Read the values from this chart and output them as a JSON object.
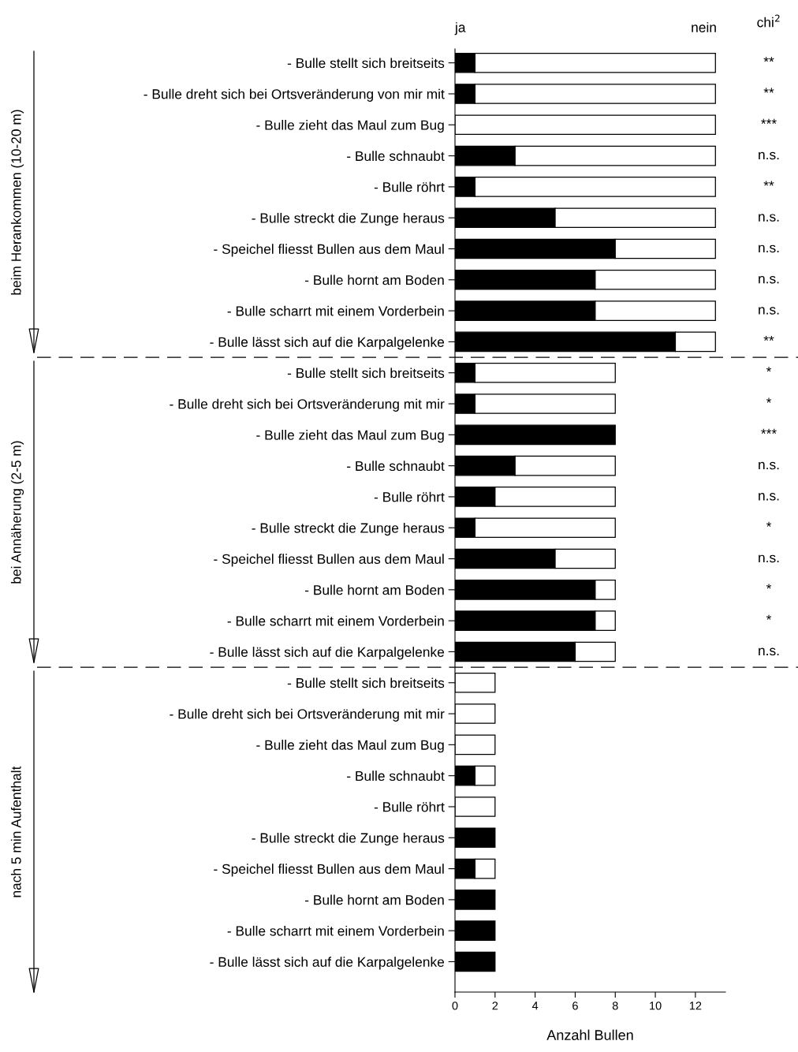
{
  "chart_data": {
    "type": "bar",
    "orientation": "horizontal",
    "stacked": true,
    "xlabel": "Anzahl Bullen",
    "categories": [
      "- Bulle stellt sich breitseits",
      "- Bulle dreht sich bei Ortsveränderung von mir mit",
      "- Bulle zieht das Maul zum Bug",
      "- Bulle schnaubt",
      "- Bulle röhrt",
      "- Bulle streckt die Zunge heraus",
      "- Speichel fliesst Bullen aus dem Maul",
      "- Bulle hornt am Boden",
      "- Bulle scharrt mit einem Vorderbein",
      "- Bulle lässt sich auf die Karpalgelenke",
      "- Bulle stellt sich breitseits",
      "- Bulle dreht sich bei Ortsveränderung mit mir",
      "- Bulle zieht das Maul zum Bug",
      "- Bulle schnaubt",
      "- Bulle röhrt",
      "- Bulle streckt die Zunge heraus",
      "- Speichel fliesst Bullen aus dem Maul",
      "- Bulle hornt am Boden",
      "- Bulle scharrt mit einem Vorderbein",
      "- Bulle lässt sich auf die Karpalgelenke",
      "- Bulle stellt sich breitseits",
      "- Bulle dreht sich bei Ortsveränderung mit mir",
      "- Bulle zieht das Maul zum Bug",
      "- Bulle schnaubt",
      "- Bulle röhrt",
      "- Bulle streckt die Zunge heraus",
      "- Speichel fliesst Bullen aus dem Maul",
      "- Bulle hornt am Boden",
      "- Bulle scharrt mit einem Vorderbein",
      "- Bulle lässt sich auf die Karpalgelenke"
    ],
    "series": [
      {
        "name": "ja",
        "color": "#000000",
        "values": [
          1,
          1,
          0,
          3,
          1,
          5,
          8,
          7,
          7,
          11,
          1,
          1,
          8,
          3,
          2,
          1,
          5,
          7,
          7,
          6,
          0,
          0,
          0,
          1,
          0,
          2,
          1,
          2,
          2,
          2
        ]
      },
      {
        "name": "nein",
        "color": "#ffffff",
        "values": [
          12,
          12,
          13,
          10,
          12,
          8,
          5,
          6,
          6,
          2,
          7,
          7,
          0,
          5,
          6,
          7,
          3,
          1,
          1,
          2,
          2,
          2,
          2,
          1,
          2,
          0,
          1,
          0,
          0,
          0
        ]
      }
    ],
    "xlim": [
      0,
      13.5
    ],
    "xticks": [
      0,
      2,
      4,
      6,
      8,
      10,
      12
    ],
    "annotations": [
      "chi$^{2}$",
      "beim Herankommen (10-20 m)",
      "bei Annäherung (2-5 m)",
      "nach 5 min Aufenthalt",
      "**",
      "**",
      "***",
      "n.s.",
      "**",
      "n.s.",
      "n.s.",
      "n.s.",
      "n.s.",
      "**",
      "*",
      "*",
      "***",
      "n.s.",
      "n.s.",
      "*",
      "n.s.",
      "*",
      "*",
      "n.s."
    ],
    "grid": false
  }
}
